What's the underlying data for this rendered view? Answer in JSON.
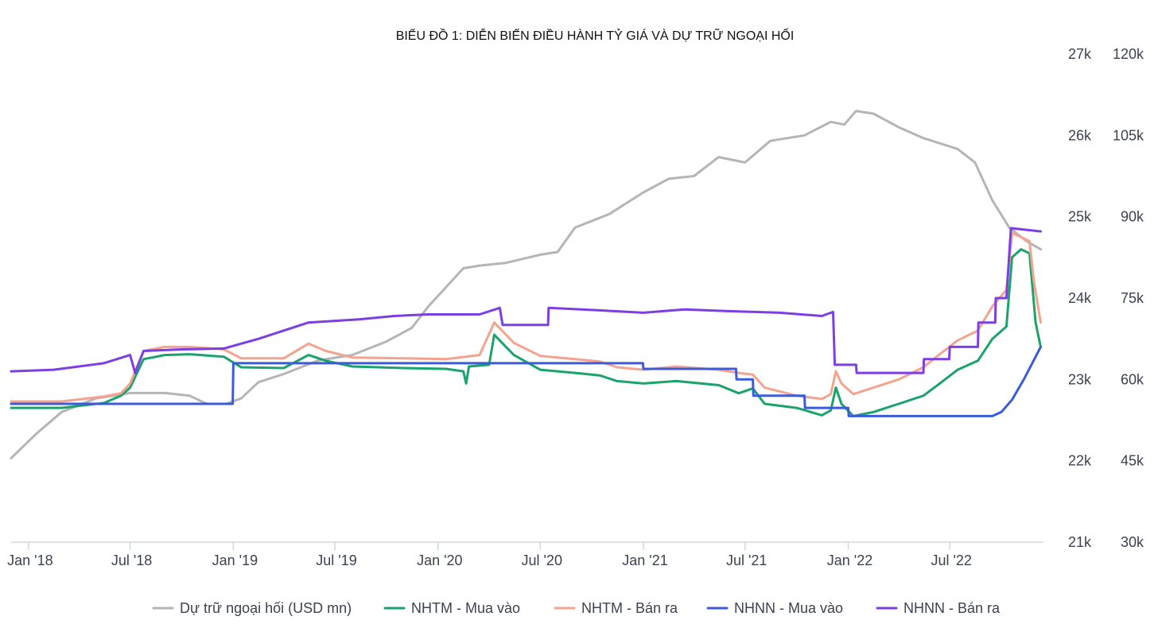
{
  "chart_data": {
    "type": "line",
    "title": "BIỂU ĐỒ 1: DIỄN BIẾN ĐIỀU HÀNH TỶ GIÁ VÀ DỰ TRỮ NGOẠI HỐI",
    "x_axis": {
      "range": [
        "2017-12-01",
        "2022-12-15"
      ],
      "tick_labels": [
        "Jan '18",
        "Jul '18",
        "Jan '19",
        "Jul '19",
        "Jan '20",
        "Jul '20",
        "Jan '21",
        "Jul '21",
        "Jan '22",
        "Jul '22"
      ],
      "tick_dates": [
        "2018-01-01",
        "2018-07-01",
        "2019-01-01",
        "2019-07-01",
        "2020-01-01",
        "2020-07-01",
        "2021-01-01",
        "2021-07-01",
        "2022-01-01",
        "2022-07-01"
      ]
    },
    "y_axis_left": {
      "range": [
        21000,
        27000
      ],
      "tick_values": [
        21000,
        22000,
        23000,
        24000,
        25000,
        26000,
        27000
      ],
      "tick_labels": [
        "21k",
        "22k",
        "23k",
        "24k",
        "25k",
        "26k",
        "27k"
      ]
    },
    "y_axis_right": {
      "range": [
        30000,
        120000
      ],
      "tick_values": [
        30000,
        45000,
        60000,
        75000,
        90000,
        105000,
        120000
      ],
      "tick_labels": [
        "30k",
        "45k",
        "60k",
        "75k",
        "90k",
        "105k",
        "120k"
      ]
    },
    "grid": false,
    "legend_position": "bottom",
    "series": [
      {
        "name": "Dự trữ ngoại hối (USD mn)",
        "axis": "right",
        "color": "#b5b5b5",
        "points": [
          [
            "2017-12-01",
            45500
          ],
          [
            "2018-01-15",
            50000
          ],
          [
            "2018-03-01",
            54000
          ],
          [
            "2018-05-01",
            56500
          ],
          [
            "2018-07-01",
            57500
          ],
          [
            "2018-09-01",
            57500
          ],
          [
            "2018-10-15",
            57000
          ],
          [
            "2018-11-15",
            55500
          ],
          [
            "2018-12-20",
            55500
          ],
          [
            "2019-01-15",
            56500
          ],
          [
            "2019-02-15",
            59500
          ],
          [
            "2019-04-01",
            61000
          ],
          [
            "2019-06-01",
            63500
          ],
          [
            "2019-08-01",
            64500
          ],
          [
            "2019-10-01",
            67000
          ],
          [
            "2019-11-15",
            69500
          ],
          [
            "2019-12-15",
            73500
          ],
          [
            "2020-01-15",
            77000
          ],
          [
            "2020-02-15",
            80500
          ],
          [
            "2020-03-15",
            81000
          ],
          [
            "2020-05-01",
            81500
          ],
          [
            "2020-07-01",
            83000
          ],
          [
            "2020-08-01",
            83500
          ],
          [
            "2020-09-01",
            88000
          ],
          [
            "2020-11-01",
            90500
          ],
          [
            "2021-01-01",
            94500
          ],
          [
            "2021-02-15",
            97000
          ],
          [
            "2021-04-01",
            97500
          ],
          [
            "2021-05-15",
            101000
          ],
          [
            "2021-07-01",
            100000
          ],
          [
            "2021-08-15",
            104000
          ],
          [
            "2021-10-15",
            105000
          ],
          [
            "2021-12-01",
            107500
          ],
          [
            "2021-12-25",
            107000
          ],
          [
            "2022-01-15",
            109500
          ],
          [
            "2022-02-15",
            109000
          ],
          [
            "2022-04-01",
            106500
          ],
          [
            "2022-05-15",
            104500
          ],
          [
            "2022-07-15",
            102500
          ],
          [
            "2022-08-15",
            100000
          ],
          [
            "2022-09-15",
            93000
          ],
          [
            "2022-10-15",
            88000
          ],
          [
            "2022-11-15",
            85500
          ],
          [
            "2022-12-10",
            84000
          ]
        ]
      },
      {
        "name": "NHTM - Mua vào",
        "axis": "left",
        "color": "#1aa36a",
        "points": [
          [
            "2017-12-01",
            22650
          ],
          [
            "2018-03-01",
            22650
          ],
          [
            "2018-05-15",
            22710
          ],
          [
            "2018-06-15",
            22800
          ],
          [
            "2018-07-01",
            22900
          ],
          [
            "2018-07-25",
            23250
          ],
          [
            "2018-09-01",
            23300
          ],
          [
            "2018-10-15",
            23310
          ],
          [
            "2018-12-15",
            23280
          ],
          [
            "2019-01-15",
            23150
          ],
          [
            "2019-04-01",
            23140
          ],
          [
            "2019-05-15",
            23300
          ],
          [
            "2019-06-15",
            23230
          ],
          [
            "2019-08-01",
            23160
          ],
          [
            "2019-11-01",
            23140
          ],
          [
            "2020-01-15",
            23130
          ],
          [
            "2020-02-15",
            23100
          ],
          [
            "2020-02-20",
            22950
          ],
          [
            "2020-02-25",
            23160
          ],
          [
            "2020-04-01",
            23180
          ],
          [
            "2020-04-10",
            23550
          ],
          [
            "2020-05-15",
            23300
          ],
          [
            "2020-07-01",
            23120
          ],
          [
            "2020-09-01",
            23080
          ],
          [
            "2020-10-15",
            23050
          ],
          [
            "2020-11-15",
            22980
          ],
          [
            "2021-01-01",
            22950
          ],
          [
            "2021-03-01",
            22980
          ],
          [
            "2021-05-15",
            22930
          ],
          [
            "2021-06-20",
            22830
          ],
          [
            "2021-07-15",
            22890
          ],
          [
            "2021-08-05",
            22700
          ],
          [
            "2021-10-01",
            22650
          ],
          [
            "2021-11-15",
            22560
          ],
          [
            "2021-12-01",
            22620
          ],
          [
            "2021-12-10",
            22900
          ],
          [
            "2021-12-20",
            22700
          ],
          [
            "2022-01-10",
            22550
          ],
          [
            "2022-02-15",
            22600
          ],
          [
            "2022-04-01",
            22700
          ],
          [
            "2022-05-15",
            22800
          ],
          [
            "2022-06-15",
            22960
          ],
          [
            "2022-07-15",
            23120
          ],
          [
            "2022-08-20",
            23230
          ],
          [
            "2022-09-15",
            23500
          ],
          [
            "2022-10-10",
            23650
          ],
          [
            "2022-10-20",
            24500
          ],
          [
            "2022-11-05",
            24600
          ],
          [
            "2022-11-20",
            24550
          ],
          [
            "2022-12-01",
            23700
          ],
          [
            "2022-12-10",
            23400
          ]
        ]
      },
      {
        "name": "NHTM - Bán ra",
        "axis": "left",
        "color": "#f4a48e",
        "points": [
          [
            "2017-12-01",
            22730
          ],
          [
            "2018-03-01",
            22730
          ],
          [
            "2018-05-15",
            22790
          ],
          [
            "2018-06-15",
            22830
          ],
          [
            "2018-07-01",
            22950
          ],
          [
            "2018-07-25",
            23350
          ],
          [
            "2018-09-01",
            23400
          ],
          [
            "2018-10-15",
            23400
          ],
          [
            "2018-12-15",
            23370
          ],
          [
            "2019-01-15",
            23260
          ],
          [
            "2019-04-01",
            23260
          ],
          [
            "2019-05-15",
            23440
          ],
          [
            "2019-06-15",
            23350
          ],
          [
            "2019-08-01",
            23270
          ],
          [
            "2019-11-01",
            23260
          ],
          [
            "2020-01-15",
            23250
          ],
          [
            "2020-03-15",
            23300
          ],
          [
            "2020-04-10",
            23700
          ],
          [
            "2020-05-15",
            23450
          ],
          [
            "2020-07-01",
            23290
          ],
          [
            "2020-09-01",
            23250
          ],
          [
            "2020-10-15",
            23220
          ],
          [
            "2020-11-15",
            23150
          ],
          [
            "2021-01-01",
            23120
          ],
          [
            "2021-03-01",
            23160
          ],
          [
            "2021-05-15",
            23120
          ],
          [
            "2021-06-20",
            23080
          ],
          [
            "2021-07-15",
            23060
          ],
          [
            "2021-08-05",
            22900
          ],
          [
            "2021-10-01",
            22800
          ],
          [
            "2021-11-15",
            22760
          ],
          [
            "2021-12-01",
            22820
          ],
          [
            "2021-12-10",
            23100
          ],
          [
            "2021-12-20",
            22950
          ],
          [
            "2022-01-10",
            22820
          ],
          [
            "2022-02-15",
            22900
          ],
          [
            "2022-04-01",
            23000
          ],
          [
            "2022-05-15",
            23150
          ],
          [
            "2022-06-15",
            23320
          ],
          [
            "2022-07-15",
            23480
          ],
          [
            "2022-08-20",
            23600
          ],
          [
            "2022-09-15",
            23900
          ],
          [
            "2022-10-10",
            24100
          ],
          [
            "2022-10-20",
            24800
          ],
          [
            "2022-11-05",
            24750
          ],
          [
            "2022-11-20",
            24700
          ],
          [
            "2022-11-28",
            24200
          ],
          [
            "2022-12-10",
            23700
          ]
        ]
      },
      {
        "name": "NHNN - Mua vào",
        "axis": "left",
        "color": "#3b5bdb",
        "points": [
          [
            "2017-12-01",
            22700
          ],
          [
            "2018-12-31",
            22700
          ],
          [
            "2019-01-01",
            23200
          ],
          [
            "2019-12-31",
            23200
          ],
          [
            "2020-01-01",
            23200
          ],
          [
            "2020-12-31",
            23200
          ],
          [
            "2021-01-01",
            23130
          ],
          [
            "2021-06-15",
            23130
          ],
          [
            "2021-06-16",
            23000
          ],
          [
            "2021-07-15",
            23000
          ],
          [
            "2021-07-16",
            22800
          ],
          [
            "2021-10-15",
            22800
          ],
          [
            "2021-10-16",
            22650
          ],
          [
            "2022-01-01",
            22650
          ],
          [
            "2022-01-02",
            22550
          ],
          [
            "2022-09-15",
            22550
          ],
          [
            "2022-10-01",
            22600
          ],
          [
            "2022-10-20",
            22750
          ],
          [
            "2022-11-10",
            23000
          ],
          [
            "2022-12-10",
            23400
          ]
        ]
      },
      {
        "name": "NHNN - Bán ra",
        "axis": "left",
        "color": "#7b3fe4",
        "points": [
          [
            "2017-12-01",
            23100
          ],
          [
            "2018-02-15",
            23120
          ],
          [
            "2018-05-15",
            23200
          ],
          [
            "2018-07-01",
            23300
          ],
          [
            "2018-07-10",
            23080
          ],
          [
            "2018-07-25",
            23350
          ],
          [
            "2018-10-01",
            23370
          ],
          [
            "2018-12-15",
            23380
          ],
          [
            "2019-02-15",
            23500
          ],
          [
            "2019-05-15",
            23700
          ],
          [
            "2019-08-15",
            23740
          ],
          [
            "2019-10-15",
            23780
          ],
          [
            "2019-12-15",
            23800
          ],
          [
            "2020-03-15",
            23800
          ],
          [
            "2020-04-20",
            23880
          ],
          [
            "2020-04-25",
            23670
          ],
          [
            "2020-07-15",
            23670
          ],
          [
            "2020-07-16",
            23880
          ],
          [
            "2020-10-15",
            23850
          ],
          [
            "2021-01-01",
            23820
          ],
          [
            "2021-03-15",
            23860
          ],
          [
            "2021-06-01",
            23840
          ],
          [
            "2021-09-01",
            23820
          ],
          [
            "2021-11-15",
            23780
          ],
          [
            "2021-12-05",
            23830
          ],
          [
            "2021-12-08",
            23180
          ],
          [
            "2022-01-15",
            23180
          ],
          [
            "2022-01-16",
            23080
          ],
          [
            "2022-05-15",
            23080
          ],
          [
            "2022-05-16",
            23250
          ],
          [
            "2022-06-30",
            23250
          ],
          [
            "2022-07-01",
            23400
          ],
          [
            "2022-08-20",
            23400
          ],
          [
            "2022-08-21",
            23700
          ],
          [
            "2022-09-20",
            23700
          ],
          [
            "2022-09-21",
            24000
          ],
          [
            "2022-10-10",
            24000
          ],
          [
            "2022-10-18",
            24860
          ],
          [
            "2022-12-10",
            24820
          ]
        ]
      }
    ]
  }
}
